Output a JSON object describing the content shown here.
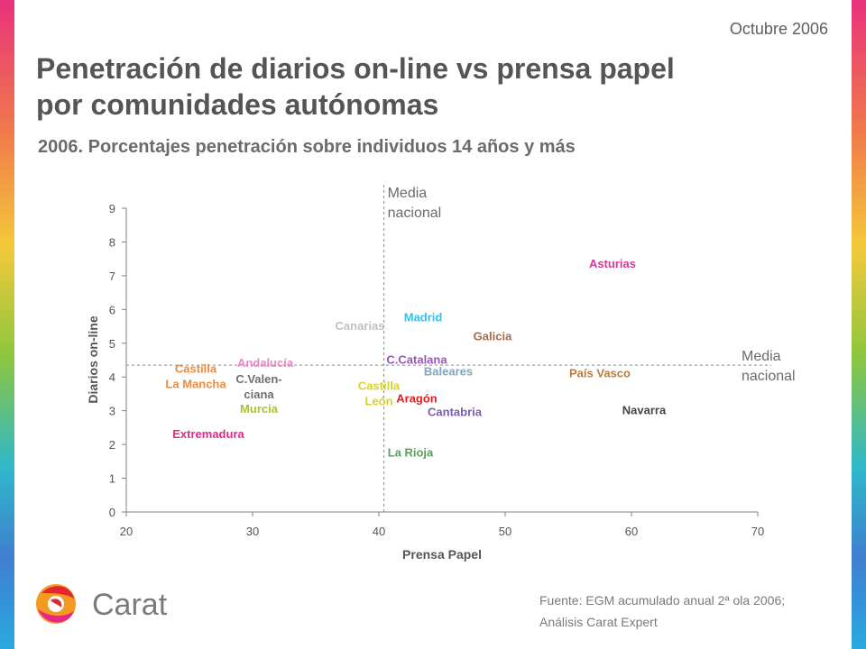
{
  "header": {
    "date": "Octubre 2006",
    "title_line1": "Penetración de diarios on-line vs prensa papel",
    "title_line2": "por comunidades autónomas",
    "subtitle": "2006. Porcentajes penetración sobre individuos 14 años y más"
  },
  "footer": {
    "source_line1": "Fuente: EGM acumulado anual 2ª ola 2006;",
    "source_line2": "Análisis Carat Expert",
    "logo_text": "Carat"
  },
  "colors": {
    "text_gray": "#555555",
    "axis_gray": "#7f7f7f",
    "logo_red": "#e4242f",
    "logo_orange": "#f39a23",
    "logo_pink": "#e6268a"
  },
  "chart_data": {
    "type": "scatter",
    "xlabel": "Prensa Papel",
    "ylabel": "Diarios on-line",
    "xlim": [
      20,
      70
    ],
    "ylim": [
      0,
      9
    ],
    "xticks": [
      20,
      30,
      40,
      50,
      60,
      70
    ],
    "yticks": [
      0,
      1,
      2,
      3,
      4,
      5,
      6,
      7,
      8,
      9
    ],
    "grid": false,
    "reference_lines": [
      {
        "orientation": "vertical",
        "value": 40.4,
        "label_lines": [
          "Media",
          "nacional"
        ]
      },
      {
        "orientation": "horizontal",
        "value": 4.35,
        "label_lines": [
          "Media",
          "nacional"
        ]
      }
    ],
    "points": [
      {
        "label_lines": [
          "Asturias"
        ],
        "x": 58.5,
        "y": 7.35,
        "color": "#d6389a"
      },
      {
        "label_lines": [
          "Madrid"
        ],
        "x": 43.5,
        "y": 5.75,
        "color": "#33c3e8"
      },
      {
        "label_lines": [
          "Canarias"
        ],
        "x": 38.5,
        "y": 5.5,
        "color": "#c0c0c0"
      },
      {
        "label_lines": [
          "Galicia"
        ],
        "x": 49.0,
        "y": 5.2,
        "color": "#a56b4a"
      },
      {
        "label_lines": [
          "C.Catalana"
        ],
        "x": 43.0,
        "y": 4.5,
        "color": "#9b57b8"
      },
      {
        "label_lines": [
          "Baleares"
        ],
        "x": 45.5,
        "y": 4.15,
        "color": "#7fa7b8"
      },
      {
        "label_lines": [
          "País Vasco"
        ],
        "x": 57.5,
        "y": 4.1,
        "color": "#b77d3e"
      },
      {
        "label_lines": [
          "Andalucía"
        ],
        "x": 31.0,
        "y": 4.4,
        "color": "#e58ac1"
      },
      {
        "label_lines": [
          "Castilla",
          "La Mancha"
        ],
        "x": 25.5,
        "y": 4.0,
        "color": "#ef8a3c"
      },
      {
        "label_lines": [
          "C.Valen-",
          "ciana"
        ],
        "x": 30.5,
        "y": 3.7,
        "color": "#6e6e6e"
      },
      {
        "label_lines": [
          "Castilla",
          "León"
        ],
        "x": 40.0,
        "y": 3.5,
        "color": "#d9d12b"
      },
      {
        "label_lines": [
          "Aragón"
        ],
        "x": 43.0,
        "y": 3.35,
        "color": "#e0201f"
      },
      {
        "label_lines": [
          "Cantabria"
        ],
        "x": 46.0,
        "y": 2.95,
        "color": "#7a5ab0"
      },
      {
        "label_lines": [
          "Navarra"
        ],
        "x": 61.0,
        "y": 3.0,
        "color": "#444444"
      },
      {
        "label_lines": [
          "Murcia"
        ],
        "x": 30.5,
        "y": 3.05,
        "color": "#a6c62b"
      },
      {
        "label_lines": [
          "Extremadura"
        ],
        "x": 26.5,
        "y": 2.3,
        "color": "#e02a86"
      },
      {
        "label_lines": [
          "La Rioja"
        ],
        "x": 42.5,
        "y": 1.75,
        "color": "#5aa05a"
      }
    ]
  }
}
